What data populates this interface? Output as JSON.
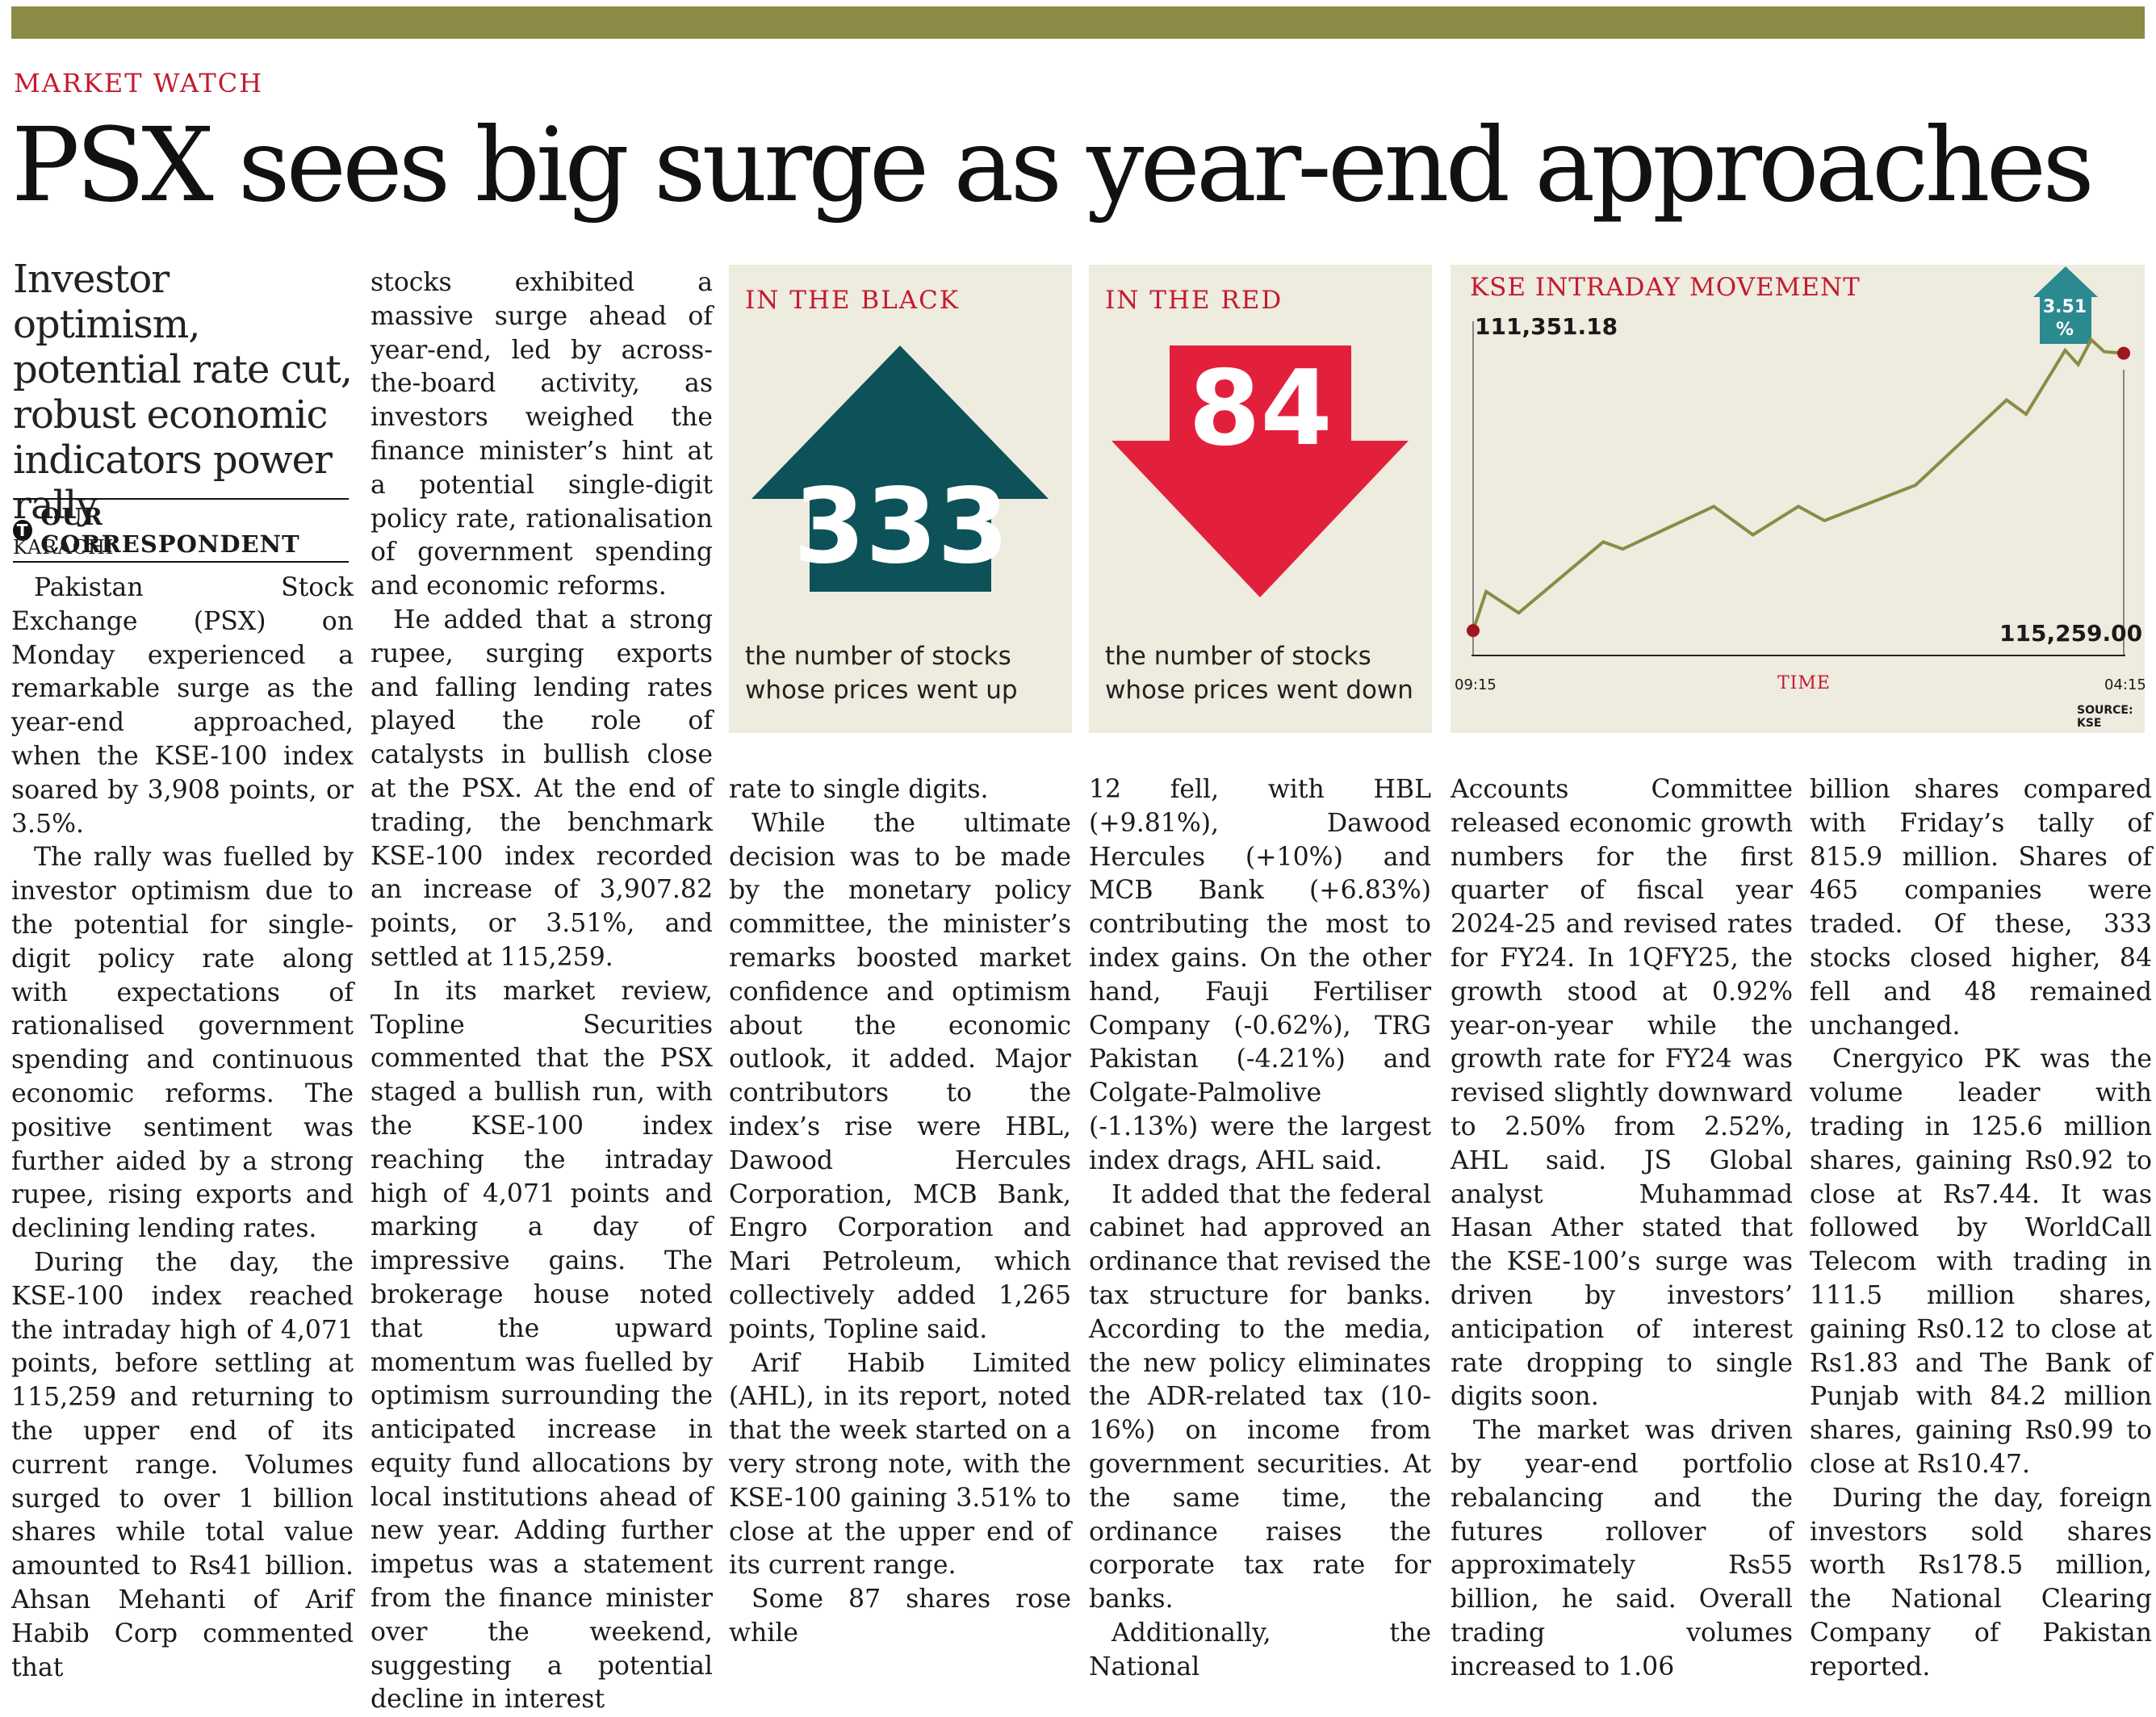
{
  "section": "MARKET WATCH",
  "headline": "PSX sees big surge as year-end approaches",
  "deck": "Investor optimism, potential rate cut, robust economic indicators power rally",
  "byline": "OUR CORRESPONDENT",
  "dateline": "KARACHI",
  "black": {
    "title": "IN THE BLACK",
    "number": "333",
    "caption1": "the number of stocks",
    "caption2": "whose prices went up"
  },
  "red": {
    "title": "IN THE RED",
    "number": "84",
    "caption1": "the number of stocks",
    "caption2": "whose prices went down"
  },
  "chart": {
    "title": "KSE INTRADAY MOVEMENT",
    "top_value": "111,351.18",
    "end_value": "115,259.00",
    "change": "3.51 %",
    "x_start": "09:15",
    "x_end": "04:15",
    "xlabel": "TIME",
    "source": "SOURCE: KSE"
  },
  "chart_data": {
    "type": "line",
    "title": "KSE INTRADAY MOVEMENT",
    "xlabel": "TIME",
    "ylabel": "",
    "x": [
      0,
      0.02,
      0.07,
      0.2,
      0.23,
      0.37,
      0.43,
      0.5,
      0.54,
      0.68,
      0.82,
      0.85,
      0.91,
      0.93,
      0.95,
      0.97,
      1.0
    ],
    "series": [
      {
        "values": [
          111351,
          111900,
          111600,
          112600,
          112500,
          113100,
          112700,
          113100,
          112900,
          113400,
          114600,
          114400,
          115300,
          115100,
          115450,
          115280,
          115259
        ]
      }
    ],
    "annotations": [
      "111,351.18",
      "115,259.00",
      "3.51 %"
    ],
    "x_ticks": [
      "09:15",
      "04:15"
    ],
    "source": "SOURCE: KSE"
  },
  "col1": [
    "Pakistan Stock Exchange (PSX) on Monday experienced a remarkable surge as the year-end approached, when the KSE-100 index soared by 3,908 points, or 3.5%.",
    "The rally was fuelled by investor optimism due to the potential for single-digit policy rate along with expectations of rationalised government spending and continuous economic reforms. The positive sentiment was further aided by a strong rupee, rising exports and declining lending rates.",
    "During the day, the KSE-100 index reached the intraday high of 4,071 points, before settling at 115,259 and returning to the upper end of its current range. Volumes surged to over 1 billion shares while total value amounted to Rs41 billion. Ahsan Mehanti of Arif Habib Corp commented that"
  ],
  "col2": [
    "stocks exhibited a massive surge ahead of year-end, led by across-the-board activity, as investors weighed the finance minister’s hint at a potential single-digit policy rate, rationalisation of government spending and economic reforms.",
    "He added that a strong rupee, surging exports and falling lending rates played the role of catalysts in bullish close at the PSX. At the end of trading, the benchmark KSE-100 index recorded an increase of 3,907.82 points, or 3.51%, and settled at 115,259.",
    "In its market review, Topline Securities commented that the PSX staged a bullish run, with the KSE-100 index reaching the intraday high of 4,071 points and marking a day of impressive gains. The brokerage house noted that the upward momentum was fuelled by optimism surrounding the anticipated increase in equity fund allocations by local institutions ahead of new year. Adding further impetus was a statement from the finance minister over the weekend, suggesting a potential decline in interest"
  ],
  "col3": [
    "rate to single digits.",
    "While the ultimate decision was to be made by the monetary policy committee, the minister’s remarks boosted market confidence and optimism about the economic outlook, it added. Major contributors to the index’s rise were HBL, Dawood Hercules Corporation, MCB Bank, Engro Corporation and Mari Petroleum, which collectively added 1,265 points, Topline said.",
    "Arif Habib Limited (AHL), in its report, noted that the week started on a very strong note, with the KSE-100 gaining 3.51% to close at the upper end of its current range.",
    "Some 87 shares rose while"
  ],
  "col4": [
    "12 fell, with HBL (+9.81%), Dawood Hercules (+10%) and MCB Bank (+6.83%) contributing the most to index gains. On the other hand, Fauji Fertiliser Company (-0.62%), TRG Pakistan (-4.21%) and Colgate-Palmolive (-1.13%) were the largest index drags, AHL said.",
    "It added that the federal cabinet had approved an ordinance that revised the tax structure for banks. According to the media, the new policy eliminates the ADR-related tax (10-16%) on income from government securities. At the same time, the ordinance raises the corporate tax rate for banks.",
    "Additionally, the National"
  ],
  "col5": [
    "Accounts Committee released economic growth numbers for the first quarter of fiscal year 2024-25 and revised rates for FY24. In 1QFY25, the growth stood at 0.92% year-on-year while the growth rate for FY24 was revised slightly downward to 2.50% from 2.52%, AHL said. JS Global analyst Muhammad Hasan Ather stated that the KSE-100’s surge was driven by investors’ anticipation of interest rate dropping to single digits soon.",
    "The market was driven by year-end portfolio rebalancing and the futures rollover of approximately Rs55 billion, he said. Overall trading volumes increased to 1.06"
  ],
  "col6": [
    "billion shares compared with Friday’s tally of 815.9 million. Shares of 465 companies were traded. Of these, 333 stocks closed higher, 84 fell and 48 remained unchanged.",
    "Cnergyico PK was the volume leader with trading in 125.6 million shares, gaining Rs0.92 to close at Rs7.44. It was followed by WorldCall Telecom with trading in 111.5 million shares, gaining Rs0.12 to close at Rs1.83 and The Bank of Punjab with 84.2 million shares, gaining Rs0.99 to close at Rs10.47.",
    "During the day, foreign investors sold shares worth Rs178.5 million, the National Clearing Company of Pakistan reported."
  ],
  "colors": {
    "accent_red": "#c41a2f",
    "arrow_teal": "#0d5258",
    "arrow_red": "#e3203c",
    "line_olive": "#8b8b45",
    "panel_bg": "#eeebdf",
    "pct_badge": "#2a8a90"
  }
}
